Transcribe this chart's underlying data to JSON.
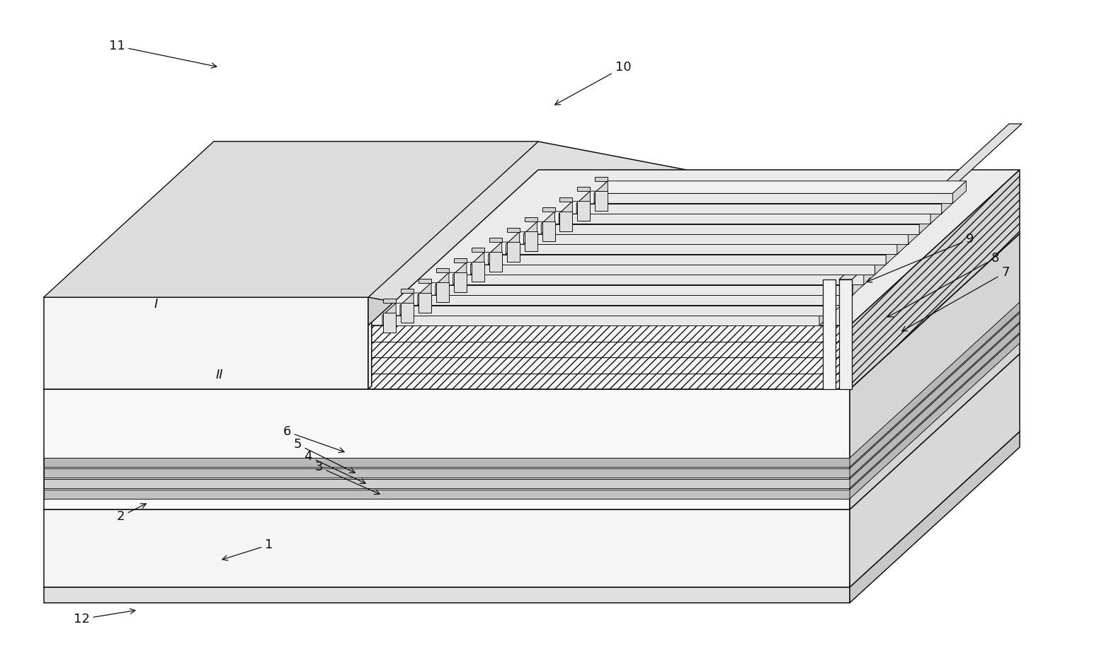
{
  "figure_width": 15.52,
  "figure_height": 9.13,
  "dpi": 100,
  "background_color": "#ffffff",
  "line_color": "#111111",
  "line_width": 1.1,
  "gray_light": "#f2f2f2",
  "gray_mid": "#e0e0e0",
  "gray_dark": "#c8c8c8",
  "gray_darker": "#b0b0b0",
  "white": "#ffffff"
}
